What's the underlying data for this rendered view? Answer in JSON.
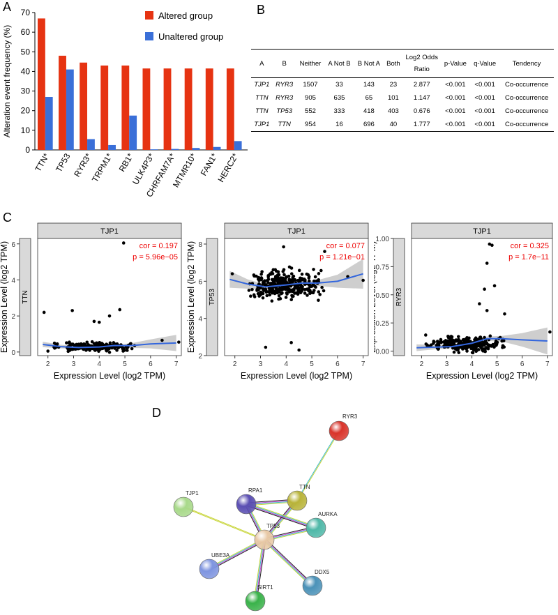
{
  "panels": {
    "A": "A",
    "B": "B",
    "C": "C",
    "D": "D"
  },
  "chart_data": [
    {
      "type": "bar",
      "panel": "A",
      "ylabel": "Alteration event frequency (%)",
      "ylim": [
        0,
        70
      ],
      "yticks": [
        "0",
        "10",
        "20",
        "30",
        "40",
        "50",
        "60",
        "70"
      ],
      "categories": [
        "TTN*",
        "TP53",
        "RYR3*",
        "TRPM1*",
        "RB1*",
        "ULK4P3*",
        "CHRFAM7A*",
        "MTMR10*",
        "FAN1*",
        "HERC2*"
      ],
      "series": [
        {
          "name": "Altered group",
          "color": "#e63312",
          "values": [
            67,
            48,
            44.5,
            43,
            43,
            41.5,
            41.5,
            41.5,
            41.5,
            41.5
          ]
        },
        {
          "name": "Unaltered group",
          "color": "#3a6fd8",
          "values": [
            27,
            41,
            5.5,
            2.5,
            17.5,
            0.3,
            0.5,
            1,
            1.5,
            4.5
          ]
        }
      ],
      "legend_position": "top-right"
    },
    {
      "type": "scatter",
      "panel": "C1",
      "strip": "TJP1",
      "ylabel": "Expression Level (log2 TPM)",
      "y_side_label": "TTN",
      "xlabel": "Expression Level (log2 TPM)",
      "xlim": [
        1.6,
        7.2
      ],
      "ylim": [
        -0.2,
        6.3
      ],
      "xticks": [
        "2",
        "3",
        "4",
        "5",
        "6",
        "7"
      ],
      "yticks": [
        "0",
        "2",
        "4",
        "6"
      ],
      "cor": "cor = 0.197",
      "p": "p = 5.96e−05",
      "fit": [
        [
          1.8,
          0.42
        ],
        [
          2.5,
          0.3
        ],
        [
          3.2,
          0.25
        ],
        [
          4.0,
          0.28
        ],
        [
          4.6,
          0.36
        ],
        [
          5.2,
          0.35
        ],
        [
          6.0,
          0.45
        ],
        [
          7.0,
          0.5
        ]
      ],
      "ci_width": [
        0.15,
        0.1,
        0.07,
        0.05,
        0.07,
        0.12,
        0.25,
        0.45
      ],
      "outliers": [
        [
          4.95,
          6.05
        ],
        [
          2.95,
          2.3
        ],
        [
          1.85,
          2.2
        ],
        [
          4.8,
          2.35
        ],
        [
          4.4,
          2.0
        ],
        [
          3.8,
          1.7
        ],
        [
          4.0,
          1.65
        ],
        [
          6.45,
          0.65
        ],
        [
          7.1,
          0.55
        ],
        [
          2.3,
          0.25
        ],
        [
          2.0,
          0.05
        ]
      ],
      "seed": 11,
      "cloud": {
        "xmin": 2.2,
        "xmax": 5.4,
        "ymean": 0.3,
        "yspread": 0.35,
        "n": 220
      }
    },
    {
      "type": "scatter",
      "panel": "C2",
      "strip": "TJP1",
      "ylabel": "Expression Level (log2 TPM)",
      "y_side_label": "TP53",
      "xlabel": "Expression Level (log2 TPM)",
      "xlim": [
        1.6,
        7.2
      ],
      "ylim": [
        2,
        8.3
      ],
      "xticks": [
        "2",
        "3",
        "4",
        "5",
        "6",
        "7"
      ],
      "yticks": [
        "2",
        "4",
        "6",
        "8"
      ],
      "cor": "cor = 0.077",
      "p": "p = 1.21e−01",
      "fit": [
        [
          1.8,
          6.1
        ],
        [
          2.5,
          5.85
        ],
        [
          3.2,
          5.7
        ],
        [
          4.0,
          5.8
        ],
        [
          4.6,
          5.9
        ],
        [
          5.2,
          5.9
        ],
        [
          6.0,
          6.0
        ],
        [
          7.0,
          6.4
        ]
      ],
      "ci_width": [
        0.45,
        0.25,
        0.12,
        0.08,
        0.1,
        0.15,
        0.35,
        0.8
      ],
      "outliers": [
        [
          4.5,
          2.3
        ],
        [
          3.2,
          2.45
        ],
        [
          4.2,
          2.7
        ],
        [
          7.0,
          6.05
        ],
        [
          1.9,
          6.4
        ],
        [
          6.4,
          6.25
        ],
        [
          5.5,
          7.6
        ],
        [
          3.9,
          7.85
        ]
      ],
      "seed": 23,
      "cloud": {
        "xmin": 2.4,
        "xmax": 5.6,
        "ymean": 5.8,
        "yspread": 1.15,
        "n": 320
      }
    },
    {
      "type": "scatter",
      "panel": "C3",
      "strip": "TJP1",
      "ylabel": "Expression Level (log2 TPM)",
      "y_side_label": "RYR3",
      "xlabel": "Expression Level (log2 TPM)",
      "xlim": [
        1.6,
        7.2
      ],
      "ylim": [
        -0.04,
        1.0
      ],
      "xticks": [
        "2",
        "3",
        "4",
        "5",
        "6",
        "7"
      ],
      "yticks": [
        "0.00",
        "0.25",
        "0.50",
        "0.75",
        "1.00"
      ],
      "cor": "cor = 0.325",
      "p": "p = 1.7e−11",
      "fit": [
        [
          1.8,
          0.03
        ],
        [
          2.5,
          0.035
        ],
        [
          3.2,
          0.04
        ],
        [
          4.0,
          0.07
        ],
        [
          4.6,
          0.11
        ],
        [
          5.2,
          0.11
        ],
        [
          6.0,
          0.1
        ],
        [
          7.0,
          0.09
        ]
      ],
      "ci_width": [
        0.03,
        0.02,
        0.015,
        0.015,
        0.02,
        0.025,
        0.06,
        0.12
      ],
      "outliers": [
        [
          4.7,
          0.95
        ],
        [
          4.8,
          0.94
        ],
        [
          4.6,
          0.78
        ],
        [
          4.5,
          0.55
        ],
        [
          4.9,
          0.58
        ],
        [
          4.3,
          0.42
        ],
        [
          7.1,
          0.17
        ],
        [
          5.3,
          0.33
        ],
        [
          4.6,
          0.36
        ]
      ],
      "seed": 37,
      "cloud": {
        "xmin": 2.0,
        "xmax": 5.5,
        "ymean": 0.06,
        "yspread": 0.09,
        "n": 260
      }
    }
  ],
  "table": {
    "headers": [
      "A",
      "B",
      "Neither",
      "A Not B",
      "B Not A",
      "Both",
      "Log2 Odds Ratio",
      "p-Value",
      "q-Value",
      "Tendency"
    ],
    "rows": [
      [
        "TJP1",
        "RYR3",
        "1507",
        "33",
        "143",
        "23",
        "2.877",
        "<0.001",
        "<0.001",
        "Co-occurrence"
      ],
      [
        "TTN",
        "RYR3",
        "905",
        "635",
        "65",
        "101",
        "1.147",
        "<0.001",
        "<0.001",
        "Co-occurrence"
      ],
      [
        "TTN",
        "TP53",
        "552",
        "333",
        "418",
        "403",
        "0.676",
        "<0.001",
        "<0.001",
        "Co-occurrence"
      ],
      [
        "TJP1",
        "TTN",
        "954",
        "16",
        "696",
        "40",
        "1.777",
        "<0.001",
        "<0.001",
        "Co-occurrence"
      ]
    ]
  },
  "network": {
    "nodes": [
      {
        "id": "RYR3",
        "label": "RYR3",
        "color": "#d9342b"
      },
      {
        "id": "TTN",
        "label": "TTN",
        "color": "#b9b43a"
      },
      {
        "id": "RPA1",
        "label": "RPA1",
        "color": "#5b4fb3"
      },
      {
        "id": "TJP1",
        "label": "TJP1",
        "color": "#a8d98a"
      },
      {
        "id": "AURKA",
        "label": "AURKA",
        "color": "#4fb8a8"
      },
      {
        "id": "TP53",
        "label": "TP53",
        "color": "#e8c9a6"
      },
      {
        "id": "UBE3A",
        "label": "UBE3A",
        "color": "#7f95e0"
      },
      {
        "id": "DDX5",
        "label": "DDX5",
        "color": "#4b92b8"
      },
      {
        "id": "SIRT1",
        "label": "SIRT1",
        "color": "#3ab24a"
      }
    ],
    "edges": [
      [
        "RYR3",
        "TTN"
      ],
      [
        "TTN",
        "TP53"
      ],
      [
        "TTN",
        "RPA1"
      ],
      [
        "RPA1",
        "TP53"
      ],
      [
        "RPA1",
        "AURKA"
      ],
      [
        "TJP1",
        "TP53"
      ],
      [
        "AURKA",
        "TP53"
      ],
      [
        "UBE3A",
        "TP53"
      ],
      [
        "DDX5",
        "TP53"
      ],
      [
        "SIRT1",
        "TP53"
      ]
    ]
  }
}
